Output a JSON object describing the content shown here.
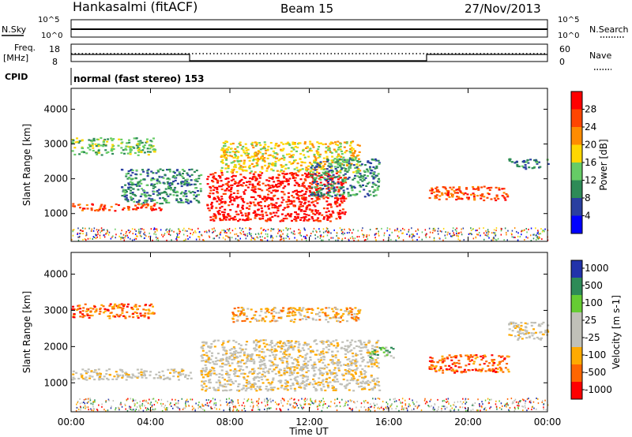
{
  "header": {
    "station": "Hankasalmi (fitACF)",
    "beam": "Beam 15",
    "date": "27/Nov/2013"
  },
  "noise_panel": {
    "left_label": "N.Sky",
    "right_label": "N.Search",
    "left_ticks": [
      "10^5",
      "10^0"
    ],
    "right_ticks": [
      "10^5",
      "10^0"
    ]
  },
  "freq_panel": {
    "left_label_1": "Freq.",
    "left_label_2": "[MHz]",
    "left_ticks": [
      "18",
      "8"
    ],
    "right_label": "Nave",
    "right_ticks": [
      "60",
      "0"
    ]
  },
  "cpid_panel": {
    "label": "CPID",
    "text": "normal (fast stereo) 153"
  },
  "colors": {
    "power_scale": [
      "#0000ff",
      "#2a3fa0",
      "#2e8b57",
      "#66cc66",
      "#ffd700",
      "#ff8c00",
      "#ff4500",
      "#ff0000"
    ],
    "velocity_scale": [
      "#ff0000",
      "#ff6600",
      "#ffaa00",
      "#c0c0b8",
      "#c0c0b8",
      "#66cc33",
      "#2e8b57",
      "#2233aa"
    ],
    "ground_scatter": "#c0c0b8"
  },
  "chart_data": [
    {
      "type": "heatmap",
      "name": "power",
      "ylabel": "Slant Range [km]",
      "yticks": [
        "1000",
        "2000",
        "3000",
        "4000"
      ],
      "ylim": [
        200,
        4600
      ],
      "colorbar_label": "Power [dB]",
      "colorbar_ticks": [
        "4",
        "8",
        "12",
        "16",
        "20",
        "24",
        "28"
      ],
      "blobs": [
        {
          "t0": 0.0,
          "t1": 4.2,
          "r0": 2700,
          "r1": 3200,
          "level": 3
        },
        {
          "t0": 0.0,
          "t1": 4.5,
          "r0": 1100,
          "r1": 1300,
          "level": 6
        },
        {
          "t0": 2.5,
          "t1": 6.5,
          "r0": 1300,
          "r1": 2300,
          "level": 2
        },
        {
          "t0": 6.8,
          "t1": 13.8,
          "r0": 800,
          "r1": 2200,
          "level": 7
        },
        {
          "t0": 7.5,
          "t1": 14.5,
          "r0": 2200,
          "r1": 3100,
          "level": 4
        },
        {
          "t0": 12.0,
          "t1": 15.5,
          "r0": 1500,
          "r1": 2600,
          "level": 2
        },
        {
          "t0": 18.0,
          "t1": 22.0,
          "r0": 1400,
          "r1": 1800,
          "level": 6
        },
        {
          "t0": 22.0,
          "t1": 24.0,
          "r0": 2300,
          "r1": 2600,
          "level": 2
        }
      ]
    },
    {
      "type": "heatmap",
      "name": "velocity",
      "ylabel": "Slant Range [km]",
      "yticks": [
        "1000",
        "2000",
        "3000",
        "4000"
      ],
      "ylim": [
        200,
        4600
      ],
      "colorbar_label": "Velocity [m s-1]",
      "colorbar_ticks": [
        "1000",
        "500",
        "100",
        "25",
        "-25",
        "-100",
        "-500",
        "-1000"
      ],
      "blobs": [
        {
          "t0": 0.0,
          "t1": 4.2,
          "r0": 2800,
          "r1": 3200,
          "level": 1
        },
        {
          "t0": 0.0,
          "t1": 6.0,
          "r0": 1100,
          "r1": 1400,
          "level": 3
        },
        {
          "t0": 6.5,
          "t1": 15.5,
          "r0": 800,
          "r1": 2200,
          "level": 3
        },
        {
          "t0": 8.0,
          "t1": 14.5,
          "r0": 2700,
          "r1": 3100,
          "level": 2
        },
        {
          "t0": 15.0,
          "t1": 16.2,
          "r0": 1700,
          "r1": 2000,
          "level": 5
        },
        {
          "t0": 18.0,
          "t1": 22.0,
          "r0": 1300,
          "r1": 1800,
          "level": 1
        },
        {
          "t0": 22.0,
          "t1": 24.0,
          "r0": 2200,
          "r1": 2700,
          "level": 3
        }
      ]
    }
  ],
  "xaxis": {
    "label": "Time UT",
    "ticks": [
      "00:00",
      "04:00",
      "08:00",
      "12:00",
      "16:00",
      "20:00",
      "00:00"
    ],
    "range_hours": [
      0,
      24
    ]
  }
}
